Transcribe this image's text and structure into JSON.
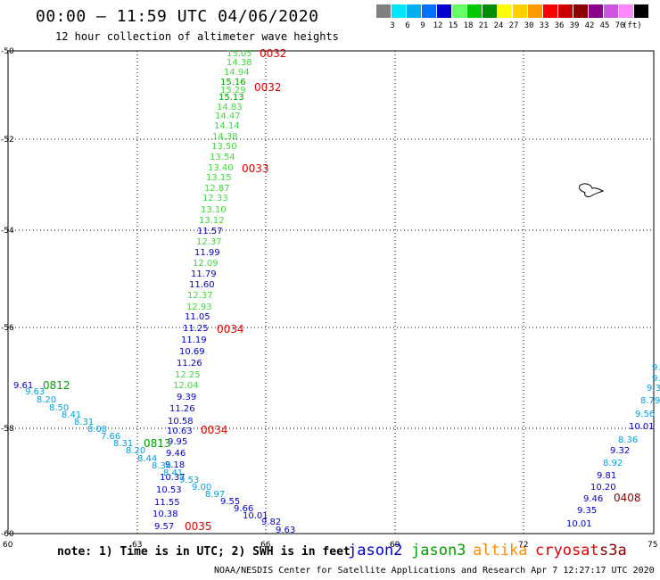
{
  "title": "00:00 – 11:59 UTC 04/06/2020",
  "subtitle": "12 hour collection of altimeter wave heights",
  "legend": {
    "swatches": [
      {
        "label": "",
        "color": "#808080"
      },
      {
        "label": "3",
        "color": "#00e5ff"
      },
      {
        "label": "6",
        "color": "#00b0f0"
      },
      {
        "label": "9",
        "color": "#0070ff"
      },
      {
        "label": "12",
        "color": "#0000cd"
      },
      {
        "label": "15",
        "color": "#66ff66"
      },
      {
        "label": "18",
        "color": "#00c800"
      },
      {
        "label": "21",
        "color": "#008c00"
      },
      {
        "label": "24",
        "color": "#ffff00"
      },
      {
        "label": "27",
        "color": "#ffd000"
      },
      {
        "label": "30",
        "color": "#ff9900"
      },
      {
        "label": "33",
        "color": "#ff0000"
      },
      {
        "label": "36",
        "color": "#cc0000"
      },
      {
        "label": "39",
        "color": "#8b0000"
      },
      {
        "label": "42",
        "color": "#8b008b"
      },
      {
        "label": "45",
        "color": "#cc55dd"
      },
      {
        "label": "70",
        "color": "#ff88ff"
      },
      {
        "label": "",
        "color": "#000000"
      }
    ],
    "unit": "(ft)"
  },
  "axes": {
    "lat_labels": [
      "-50",
      "-52",
      "-54",
      "-56",
      "-58",
      "-60"
    ],
    "lon_labels": [
      "60",
      "63",
      "66",
      "69",
      "72",
      "75"
    ]
  },
  "colors": {
    "jason2": "#0000c8",
    "jason3": "#00a000",
    "altika": "#ff8c00",
    "cryosat": "#e00000",
    "s3a": "#800000",
    "cyan": "#00a0e0",
    "light_green": "#40d840"
  },
  "track_a": [
    {
      "t": "15.05",
      "c": "light_green"
    },
    {
      "t": "14.38",
      "c": "light_green"
    },
    {
      "t": "14.94",
      "c": "light_green"
    },
    {
      "t": "15.16",
      "c": "jason3"
    },
    {
      "t": "15.29",
      "c": "light_green"
    },
    {
      "t": "15.13",
      "c": "jason3"
    },
    {
      "t": "14.83",
      "c": "light_green"
    },
    {
      "t": "14.47",
      "c": "light_green"
    },
    {
      "t": "14.14",
      "c": "light_green"
    },
    {
      "t": "14.38",
      "c": "light_green"
    },
    {
      "t": "13.50",
      "c": "light_green"
    },
    {
      "t": "13.54",
      "c": "light_green"
    },
    {
      "t": "13.40",
      "c": "light_green"
    },
    {
      "t": "13.15",
      "c": "light_green"
    },
    {
      "t": "12.87",
      "c": "light_green"
    },
    {
      "t": "12.33",
      "c": "light_green"
    },
    {
      "t": "13.10",
      "c": "light_green"
    },
    {
      "t": "13.12",
      "c": "light_green"
    },
    {
      "t": "11.57",
      "c": "jason2"
    },
    {
      "t": "12.37",
      "c": "light_green"
    },
    {
      "t": "11.99",
      "c": "jason2"
    },
    {
      "t": "12.09",
      "c": "light_green"
    },
    {
      "t": "11.79",
      "c": "jason2"
    },
    {
      "t": "11.60",
      "c": "jason2"
    },
    {
      "t": "12.37",
      "c": "light_green"
    },
    {
      "t": "12.93",
      "c": "light_green"
    },
    {
      "t": "11.05",
      "c": "jason2"
    },
    {
      "t": "11.25",
      "c": "jason2"
    },
    {
      "t": "11.19",
      "c": "jason2"
    },
    {
      "t": "10.69",
      "c": "jason2"
    },
    {
      "t": "11.26",
      "c": "jason2"
    },
    {
      "t": "12.25",
      "c": "light_green"
    },
    {
      "t": "12.04",
      "c": "light_green"
    },
    {
      "t": "9.39",
      "c": "jason2"
    },
    {
      "t": "11.26",
      "c": "jason2"
    },
    {
      "t": "10.58",
      "c": "jason2"
    },
    {
      "t": "10.63",
      "c": "jason2"
    },
    {
      "t": "9.95",
      "c": "jason2"
    },
    {
      "t": "9.46",
      "c": "jason2"
    },
    {
      "t": "9.18",
      "c": "jason2"
    },
    {
      "t": "10.37",
      "c": "jason2"
    },
    {
      "t": "10.53",
      "c": "jason2"
    },
    {
      "t": "11.55",
      "c": "jason2"
    },
    {
      "t": "10.38",
      "c": "jason2"
    },
    {
      "t": "9.57",
      "c": "jason2"
    }
  ],
  "track_b": [
    {
      "t": "9.61",
      "c": "jason2"
    },
    {
      "t": "9.63",
      "c": "cyan"
    },
    {
      "t": "8.20",
      "c": "cyan"
    },
    {
      "t": "8.50",
      "c": "cyan"
    },
    {
      "t": "8.41",
      "c": "cyan"
    },
    {
      "t": "8.31",
      "c": "cyan"
    },
    {
      "t": "8.08",
      "c": "cyan"
    },
    {
      "t": "7.66",
      "c": "cyan"
    },
    {
      "t": "8.31",
      "c": "cyan"
    },
    {
      "t": "8.20",
      "c": "cyan"
    },
    {
      "t": "8.44",
      "c": "cyan"
    },
    {
      "t": "8.34",
      "c": "cyan"
    },
    {
      "t": "8.41",
      "c": "cyan"
    },
    {
      "t": "9.53",
      "c": "cyan"
    },
    {
      "t": "9.00",
      "c": "cyan"
    },
    {
      "t": "8.97",
      "c": "cyan"
    },
    {
      "t": "9.55",
      "c": "jason2"
    },
    {
      "t": "9.66",
      "c": "jason2"
    },
    {
      "t": "10.01",
      "c": "jason2"
    },
    {
      "t": "9.82",
      "c": "jason2"
    },
    {
      "t": "9.63",
      "c": "jason2"
    }
  ],
  "track_c": [
    {
      "t": "9.",
      "c": "cyan"
    },
    {
      "t": "9.4",
      "c": "cyan"
    },
    {
      "t": "9.32",
      "c": "cyan"
    },
    {
      "t": "8.79",
      "c": "cyan"
    },
    {
      "t": "9.56",
      "c": "cyan"
    },
    {
      "t": "10.01",
      "c": "jason2"
    },
    {
      "t": "8.36",
      "c": "cyan"
    },
    {
      "t": "9.32",
      "c": "jason2"
    },
    {
      "t": "8.92",
      "c": "cyan"
    },
    {
      "t": "9.81",
      "c": "jason2"
    },
    {
      "t": "10.20",
      "c": "jason2"
    },
    {
      "t": "9.46",
      "c": "jason2"
    },
    {
      "t": "9.35",
      "c": "jason2"
    },
    {
      "t": "10.01",
      "c": "jason2"
    }
  ],
  "time_labels": [
    {
      "t": "0032",
      "c": "cryosat"
    },
    {
      "t": "0032",
      "c": "cryosat"
    },
    {
      "t": "0033",
      "c": "cryosat"
    },
    {
      "t": "0034",
      "c": "cryosat"
    },
    {
      "t": "0034",
      "c": "cryosat"
    },
    {
      "t": "0035",
      "c": "cryosat"
    },
    {
      "t": "0812",
      "c": "jason3"
    },
    {
      "t": "0813",
      "c": "jason3"
    },
    {
      "t": "0408",
      "c": "s3a"
    }
  ],
  "note": "note: 1) Time is in UTC; 2) SWH is in feet",
  "satellites": [
    {
      "name": "jason2",
      "c": "jason2"
    },
    {
      "name": "jason3",
      "c": "jason3"
    },
    {
      "name": "altika",
      "c": "altika"
    },
    {
      "name": "cryosat",
      "c": "cryosat"
    },
    {
      "name": "s3a",
      "c": "s3a"
    }
  ],
  "credit": "NOAA/NESDIS Center for Satellite Applications and Research    Apr  7 12:27:17 UTC 2020"
}
